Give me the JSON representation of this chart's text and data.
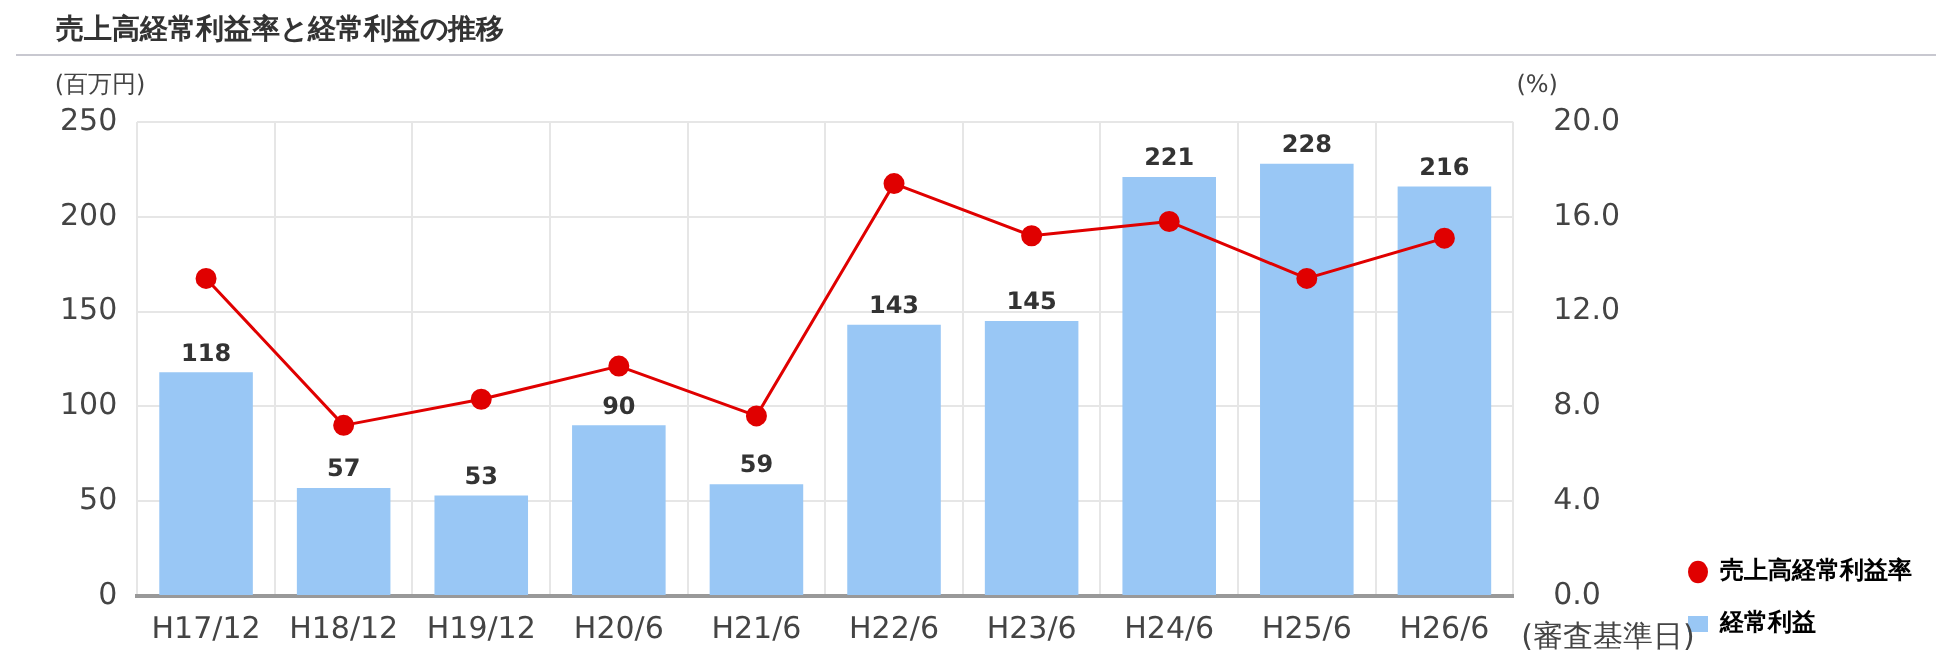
{
  "chart_data": {
    "type": "bar",
    "title": "売上高経常利益率と経常利益の推移",
    "xlabel": "(審査基準日)",
    "ylabel": "(百万円)",
    "y2label": "(%)",
    "categories": [
      "H17/12",
      "H18/12",
      "H19/12",
      "H20/6",
      "H21/6",
      "H22/6",
      "H23/6",
      "H24/6",
      "H25/6",
      "H26/6"
    ],
    "series": [
      {
        "name": "売上高経常利益率",
        "type": "line",
        "axis": "y2",
        "color": "#e00000",
        "values": [
          13.4,
          7.2,
          8.3,
          9.7,
          7.6,
          17.4,
          15.2,
          15.8,
          13.4,
          15.1
        ]
      },
      {
        "name": "経常利益",
        "type": "bar",
        "color": "#99c7f5",
        "values": [
          118,
          57,
          53,
          90,
          59,
          143,
          145,
          221,
          228,
          216
        ],
        "value_labels": [
          "118",
          "57",
          "53",
          "90",
          "59",
          "143",
          "145",
          "221",
          "228",
          "216"
        ]
      }
    ],
    "ylim": [
      0,
      250
    ],
    "yticks": [
      0,
      50,
      100,
      150,
      200,
      250
    ],
    "y2lim": [
      0,
      20
    ],
    "y2ticks": [
      {
        "value": 0,
        "label": "0.0"
      },
      {
        "value": 4,
        "label": "4.0"
      },
      {
        "value": 8,
        "label": "8.0"
      },
      {
        "value": 12,
        "label": "12.0"
      },
      {
        "value": 16,
        "label": "16.0"
      },
      {
        "value": 20,
        "label": "20.0"
      }
    ],
    "grid": true,
    "legend": "right",
    "marker": "circle"
  }
}
